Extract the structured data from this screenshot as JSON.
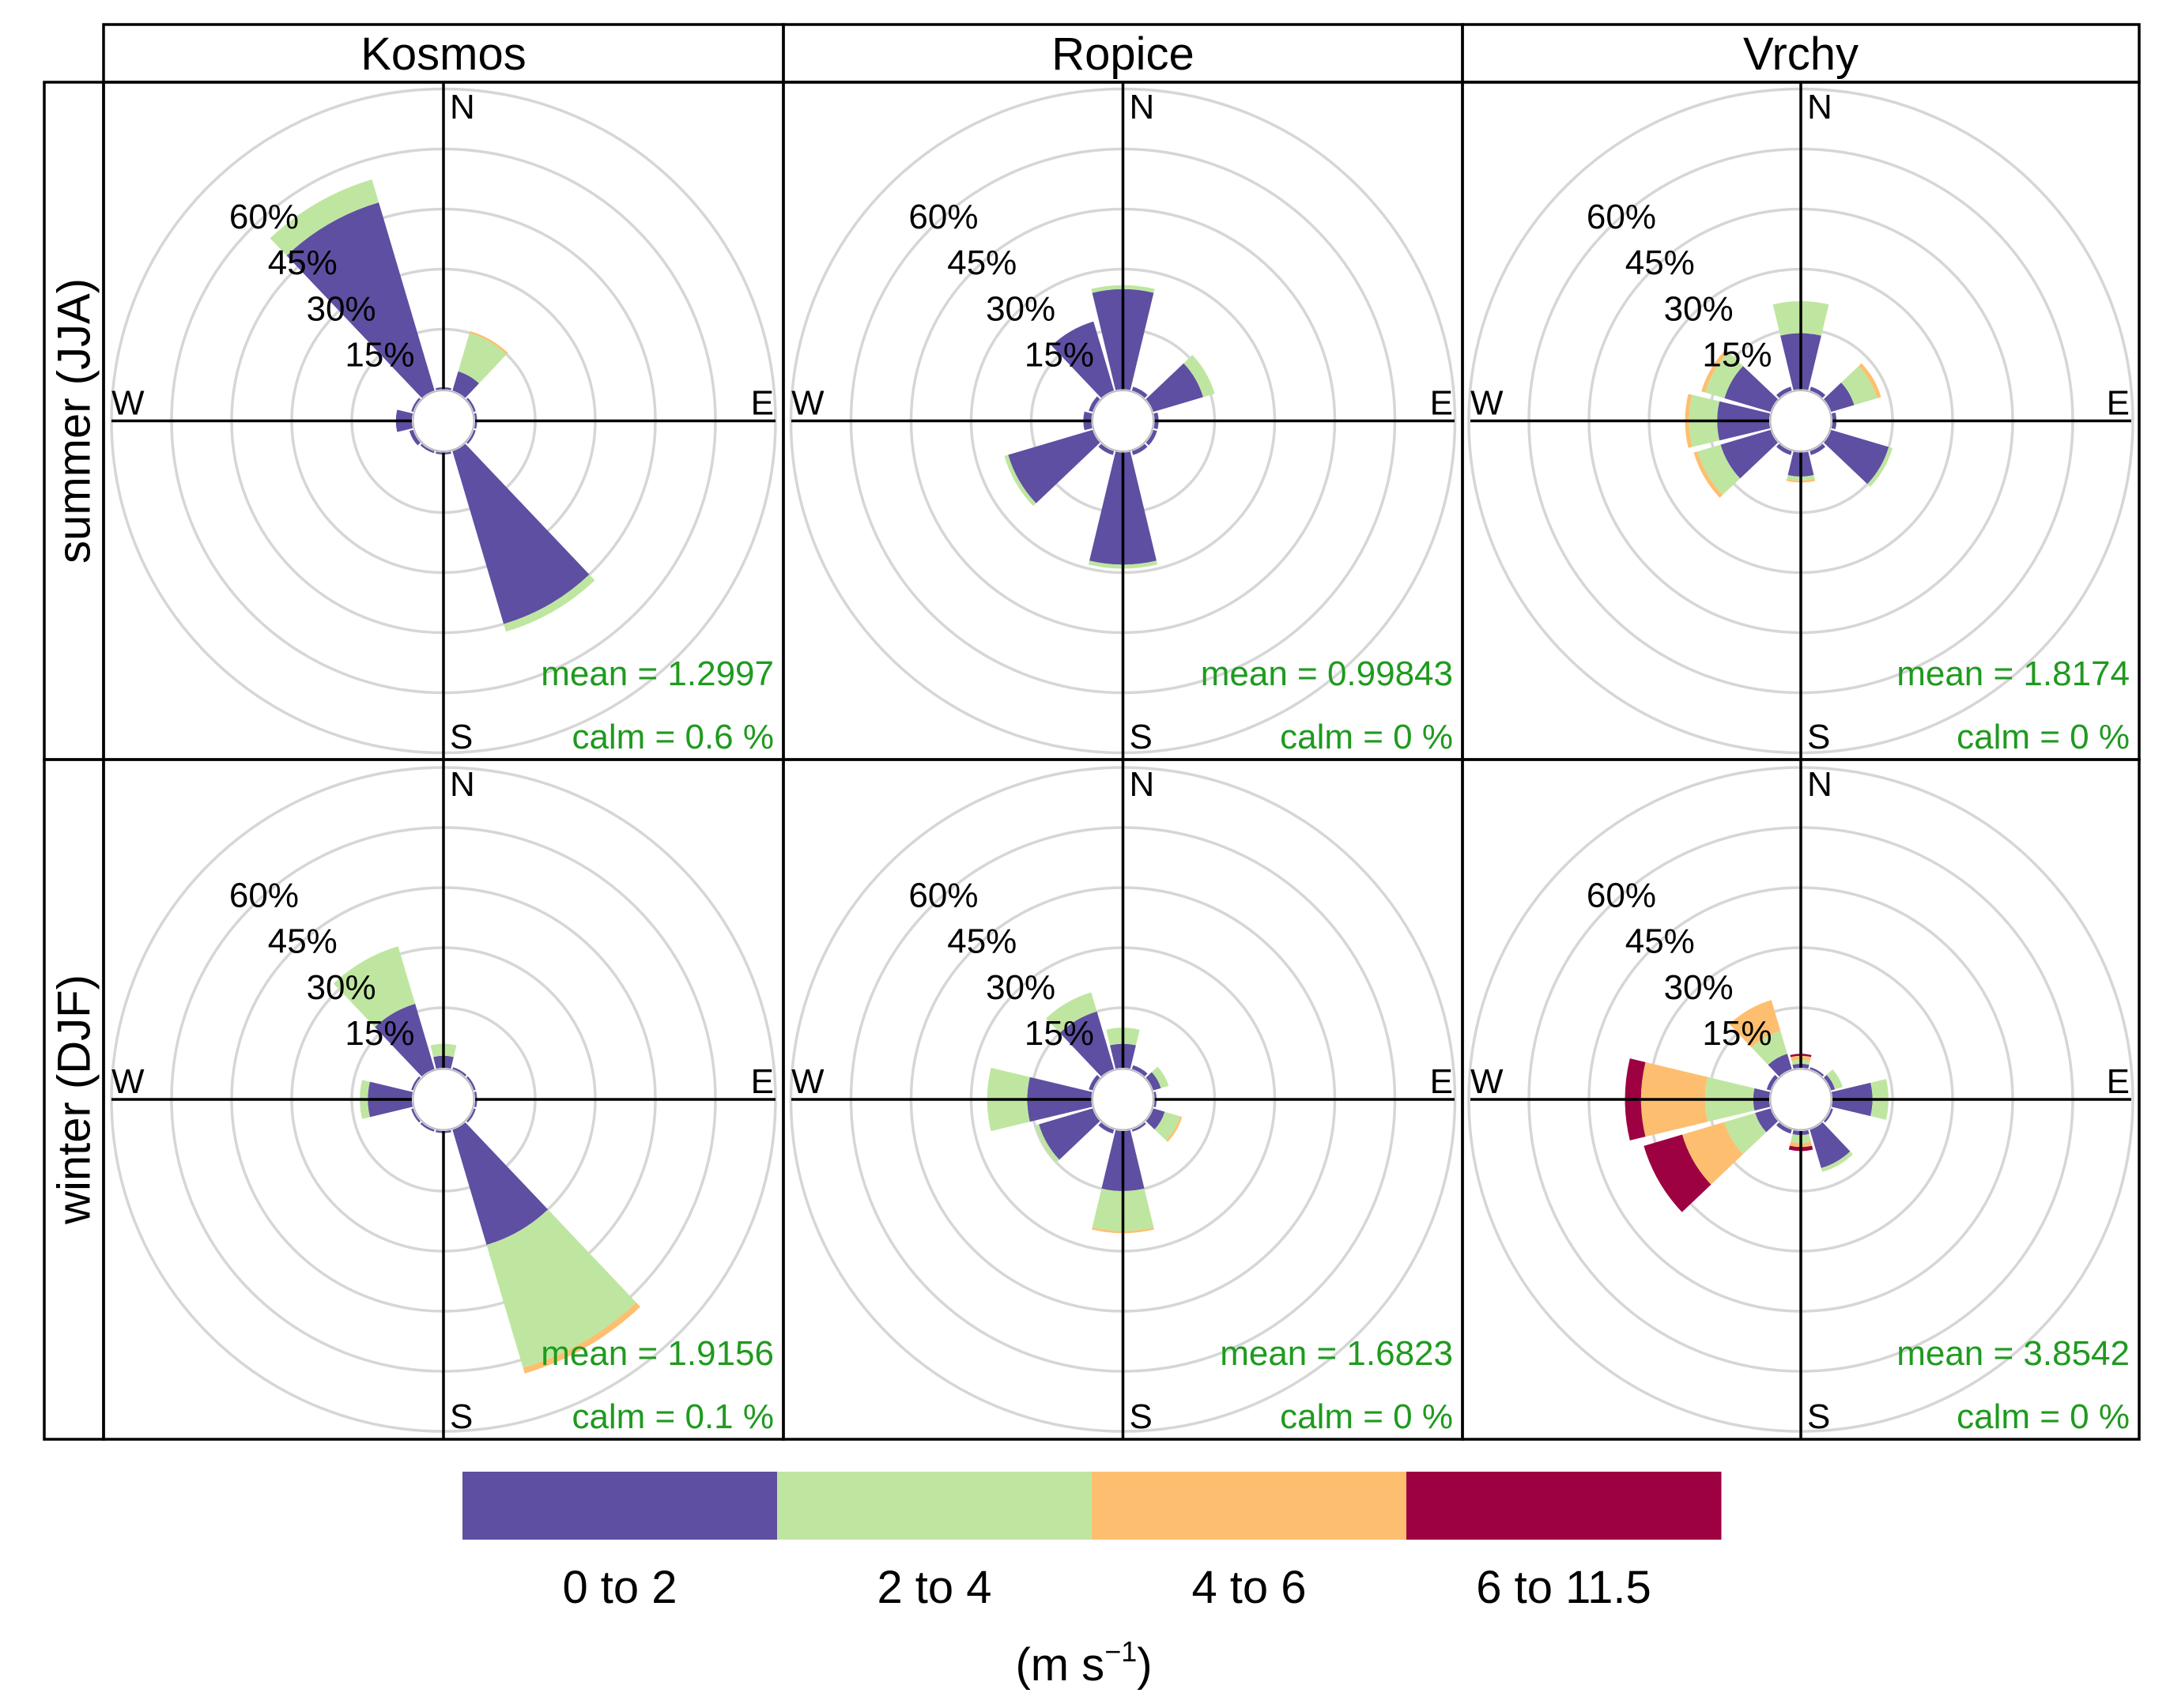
{
  "chart_data": {
    "type": "windrose",
    "columns": [
      "Kosmos",
      "Ropice",
      "Vrchy"
    ],
    "rows": [
      "summer (JJA)",
      "winter (DJF)"
    ],
    "compass": [
      "N",
      "E",
      "S",
      "W"
    ],
    "radial_ticks": [
      "15%",
      "30%",
      "45%",
      "60%"
    ],
    "radial_tick_values": [
      15,
      30,
      45,
      60
    ],
    "radial_max": 75,
    "direction_bin_width_deg": 30,
    "speed_bins": [
      {
        "label": "0 to 2",
        "color": "#5e4fa2"
      },
      {
        "label": "2 to 4",
        "color": "#bfe6a0"
      },
      {
        "label": "4 to 6",
        "color": "#fdbf6f"
      },
      {
        "label": "6 to 11.5",
        "color": "#9e0142"
      }
    ],
    "units_label": "(m s",
    "units_exp": "−1",
    "units_close": ")",
    "panels": [
      {
        "site": "Kosmos",
        "season": "summer (JJA)",
        "mean_label": "mean  =  1.2997",
        "calm_label": "calm =  0.6 %",
        "directions": [
          {
            "dir": 0,
            "values": [
              0.5,
              0,
              0,
              0
            ]
          },
          {
            "dir": 30,
            "values": [
              5,
              10,
              0.5,
              0
            ]
          },
          {
            "dir": 60,
            "values": [
              0.5,
              0,
              0,
              0
            ]
          },
          {
            "dir": 90,
            "values": [
              0.5,
              0,
              0,
              0
            ]
          },
          {
            "dir": 120,
            "values": [
              0.5,
              0,
              0,
              0
            ]
          },
          {
            "dir": 150,
            "values": [
              45,
              2,
              0,
              0
            ]
          },
          {
            "dir": 180,
            "values": [
              0.5,
              0,
              0,
              0
            ]
          },
          {
            "dir": 210,
            "values": [
              0.5,
              0,
              0,
              0
            ]
          },
          {
            "dir": 240,
            "values": [
              1,
              0,
              0,
              0
            ]
          },
          {
            "dir": 270,
            "values": [
              4,
              0,
              0,
              0
            ]
          },
          {
            "dir": 300,
            "values": [
              0.5,
              0,
              0,
              0
            ]
          },
          {
            "dir": 330,
            "values": [
              49,
              6,
              0,
              0
            ]
          }
        ]
      },
      {
        "site": "Ropice",
        "season": "summer (JJA)",
        "mean_label": "mean  =  0.99843",
        "calm_label": "calm =  0 %",
        "directions": [
          {
            "dir": 0,
            "values": [
              25,
              1,
              0,
              0
            ]
          },
          {
            "dir": 30,
            "values": [
              1,
              0,
              0,
              0
            ]
          },
          {
            "dir": 60,
            "values": [
              13,
              3,
              0,
              0
            ]
          },
          {
            "dir": 90,
            "values": [
              1,
              0,
              0,
              0
            ]
          },
          {
            "dir": 120,
            "values": [
              1,
              0,
              0,
              0
            ]
          },
          {
            "dir": 150,
            "values": [
              1,
              0,
              0,
              0
            ]
          },
          {
            "dir": 180,
            "values": [
              28,
              1,
              0,
              0
            ]
          },
          {
            "dir": 210,
            "values": [
              1,
              0,
              0,
              0
            ]
          },
          {
            "dir": 240,
            "values": [
              22,
              1,
              0,
              0
            ]
          },
          {
            "dir": 270,
            "values": [
              2,
              0,
              0,
              0
            ]
          },
          {
            "dir": 300,
            "values": [
              1,
              0,
              0,
              0
            ]
          },
          {
            "dir": 330,
            "values": [
              18,
              0,
              0,
              0
            ]
          }
        ]
      },
      {
        "site": "Vrchy",
        "season": "summer (JJA)",
        "mean_label": "mean  =  1.8174",
        "calm_label": "calm =  0 %",
        "directions": [
          {
            "dir": 0,
            "values": [
              14,
              8,
              0,
              0
            ]
          },
          {
            "dir": 30,
            "values": [
              1,
              0,
              0,
              0
            ]
          },
          {
            "dir": 60,
            "values": [
              6,
              6,
              1,
              0
            ]
          },
          {
            "dir": 90,
            "values": [
              1,
              0,
              0,
              0
            ]
          },
          {
            "dir": 120,
            "values": [
              15,
              1,
              0,
              0
            ]
          },
          {
            "dir": 150,
            "values": [
              1,
              0,
              0,
              0
            ]
          },
          {
            "dir": 180,
            "values": [
              6,
              1,
              0.5,
              0
            ]
          },
          {
            "dir": 210,
            "values": [
              1,
              0,
              0,
              0
            ]
          },
          {
            "dir": 240,
            "values": [
              13,
              6,
              1,
              0
            ]
          },
          {
            "dir": 270,
            "values": [
              13,
              7,
              1,
              0
            ]
          },
          {
            "dir": 300,
            "values": [
              12,
              5,
              1,
              0
            ]
          },
          {
            "dir": 330,
            "values": [
              1,
              0,
              0,
              0
            ]
          }
        ]
      },
      {
        "site": "Kosmos",
        "season": "winter (DJF)",
        "mean_label": "mean  =  1.9156",
        "calm_label": "calm =  0.1 %",
        "directions": [
          {
            "dir": 0,
            "values": [
              3,
              3,
              0,
              0
            ]
          },
          {
            "dir": 30,
            "values": [
              0.5,
              0,
              0,
              0
            ]
          },
          {
            "dir": 60,
            "values": [
              0.5,
              0,
              0,
              0
            ]
          },
          {
            "dir": 90,
            "values": [
              0.5,
              0,
              0,
              0
            ]
          },
          {
            "dir": 120,
            "values": [
              0.5,
              0,
              0,
              0
            ]
          },
          {
            "dir": 150,
            "values": [
              30,
              32,
              1.5,
              0
            ]
          },
          {
            "dir": 180,
            "values": [
              0.5,
              0,
              0,
              0
            ]
          },
          {
            "dir": 210,
            "values": [
              0.5,
              0,
              0,
              0
            ]
          },
          {
            "dir": 240,
            "values": [
              0.5,
              0,
              0,
              0
            ]
          },
          {
            "dir": 270,
            "values": [
              11,
              2,
              0,
              0
            ]
          },
          {
            "dir": 300,
            "values": [
              0.5,
              0,
              0,
              0
            ]
          },
          {
            "dir": 330,
            "values": [
              17,
              15,
              0,
              0
            ]
          }
        ]
      },
      {
        "site": "Ropice",
        "season": "winter (DJF)",
        "mean_label": "mean  =  1.6823",
        "calm_label": "calm =  0 %",
        "directions": [
          {
            "dir": 0,
            "values": [
              6,
              4,
              0,
              0
            ]
          },
          {
            "dir": 30,
            "values": [
              1,
              0,
              0,
              0
            ]
          },
          {
            "dir": 60,
            "values": [
              2,
              2,
              0,
              0
            ]
          },
          {
            "dir": 90,
            "values": [
              0.5,
              0,
              0,
              0
            ]
          },
          {
            "dir": 120,
            "values": [
              3,
              4,
              0.5,
              0
            ]
          },
          {
            "dir": 150,
            "values": [
              0.5,
              0,
              0,
              0
            ]
          },
          {
            "dir": 180,
            "values": [
              15,
              10,
              0.5,
              0
            ]
          },
          {
            "dir": 210,
            "values": [
              1,
              0,
              0,
              0
            ]
          },
          {
            "dir": 240,
            "values": [
              14,
              1,
              0,
              0
            ]
          },
          {
            "dir": 270,
            "values": [
              16,
              10,
              0,
              0
            ]
          },
          {
            "dir": 300,
            "values": [
              1,
              0,
              0,
              0
            ]
          },
          {
            "dir": 330,
            "values": [
              15,
              5,
              0,
              0
            ]
          }
        ]
      },
      {
        "site": "Vrchy",
        "season": "winter (DJF)",
        "mean_label": "mean  =  3.8542",
        "calm_label": "calm =  0 %",
        "directions": [
          {
            "dir": 0,
            "values": [
              1,
              1,
              1,
              0.5
            ]
          },
          {
            "dir": 30,
            "values": [
              0.5,
              0,
              0,
              0
            ]
          },
          {
            "dir": 60,
            "values": [
              1,
              2,
              0,
              0
            ]
          },
          {
            "dir": 90,
            "values": [
              10,
              4,
              0,
              0
            ]
          },
          {
            "dir": 120,
            "values": [
              0.5,
              0,
              0,
              0
            ]
          },
          {
            "dir": 150,
            "values": [
              10,
              1,
              0,
              0
            ]
          },
          {
            "dir": 180,
            "values": [
              1,
              2,
              1,
              1
            ]
          },
          {
            "dir": 210,
            "values": [
              1,
              0,
              0,
              0
            ]
          },
          {
            "dir": 240,
            "values": [
              4,
              8,
              11,
              10
            ]
          },
          {
            "dir": 270,
            "values": [
              4,
              12,
              16,
              4
            ]
          },
          {
            "dir": 300,
            "values": [
              1,
              0,
              0,
              0
            ]
          },
          {
            "dir": 330,
            "values": [
              4,
              6,
              8,
              0
            ]
          }
        ]
      }
    ]
  }
}
